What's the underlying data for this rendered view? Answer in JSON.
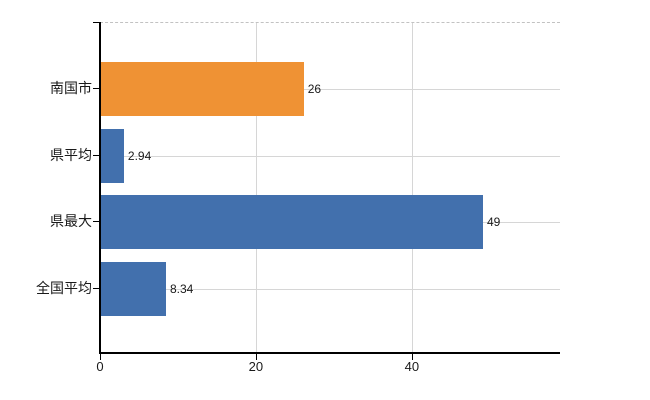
{
  "chart_data": {
    "type": "bar",
    "orientation": "horizontal",
    "title": "",
    "xlabel": "",
    "ylabel": "",
    "categories": [
      "南国市",
      "県平均",
      "県最大",
      "全国平均"
    ],
    "values": [
      26,
      2.94,
      49,
      8.34
    ],
    "value_labels": [
      "26",
      "2.94",
      "49",
      "8.34"
    ],
    "bar_colors": [
      "#ef9234",
      "#4270ad",
      "#4270ad",
      "#4270ad"
    ],
    "xlim": [
      0,
      59
    ],
    "xticks": [
      0,
      20,
      40
    ],
    "xtick_labels": [
      "0",
      "20",
      "40"
    ],
    "grid": true,
    "legend_position": "none"
  },
  "colors": {
    "background": "#ffffff",
    "axis": "#000000",
    "gridline": "#d6d6d6",
    "plot_top_border": "#c2c2c2",
    "bar_orange": "#ef9234",
    "bar_blue": "#4270ad",
    "text": "#1a1a1a"
  }
}
